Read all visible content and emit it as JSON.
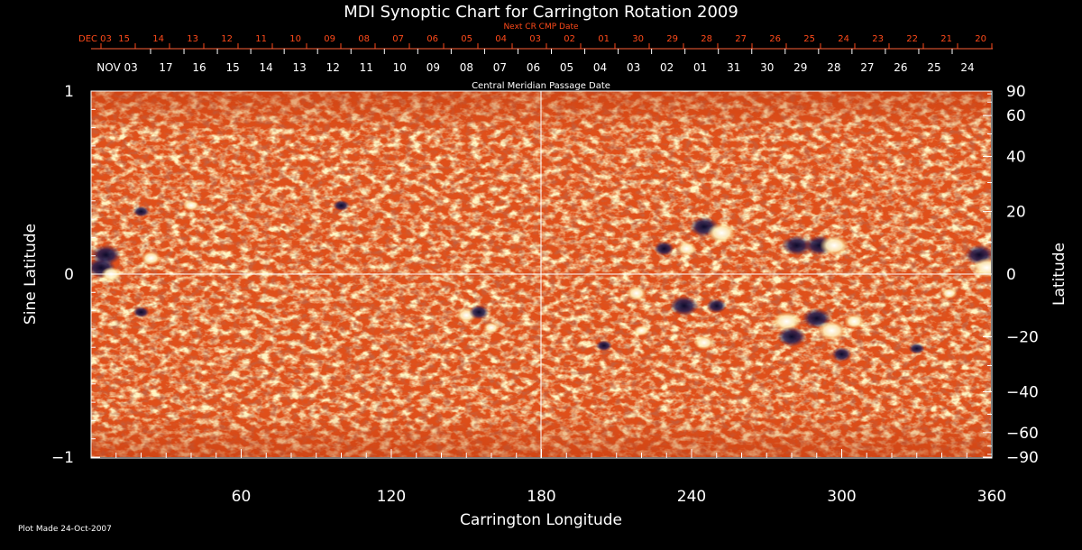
{
  "chart_data": {
    "type": "heatmap",
    "title": "MDI Synoptic Chart for Carrington Rotation 2009",
    "xlabel": "Carrington Longitude",
    "ylabel_left": "Sine Latitude",
    "ylabel_right": "Latitude",
    "xlim": [
      0,
      360
    ],
    "ylim": [
      -1,
      1
    ],
    "x_ticks": [
      60,
      120,
      180,
      240,
      300,
      360
    ],
    "y_ticks_left": [
      1,
      0,
      -1
    ],
    "y_ticks_left_labels": [
      "1",
      "0",
      "−1"
    ],
    "y_ticks_right": [
      90,
      60,
      40,
      20,
      0,
      -20,
      -40,
      -60,
      -90
    ],
    "y_ticks_right_labels": [
      "90",
      "60",
      "40",
      "20",
      "0",
      "−20",
      "−40",
      "−60",
      "−90"
    ],
    "grid": "center crosshair at 180 longitude and 0 latitude",
    "top_axis_red_label": "Next CR CMP Date",
    "top_axis_red_dates": [
      "DEC 03",
      "15",
      "14",
      "13",
      "12",
      "11",
      "10",
      "09",
      "08",
      "07",
      "06",
      "05",
      "04",
      "03",
      "02",
      "01",
      "30",
      "29",
      "28",
      "27",
      "26",
      "25",
      "24",
      "23",
      "22",
      "21",
      "20"
    ],
    "top_axis_white_label": "Central Meridian Passage Date",
    "top_axis_white_dates": [
      "NOV 03",
      "17",
      "16",
      "15",
      "14",
      "13",
      "12",
      "11",
      "10",
      "09",
      "08",
      "07",
      "06",
      "05",
      "04",
      "03",
      "02",
      "01",
      "31",
      "30",
      "29",
      "28",
      "27",
      "26",
      "25",
      "24"
    ],
    "footer_note": "Plot Made 24-Oct-2007",
    "colors": {
      "background": "#000000",
      "field_base": "#e8561c",
      "positive_polarity": "#ffffff",
      "negative_polarity": "#1a1845",
      "axes": "#ffffff",
      "top_dates_red": "#ff4a1a"
    },
    "regions": [
      {
        "lon": 4,
        "lat": 2,
        "polarity": "negative",
        "strength": "strong"
      },
      {
        "lon": 6,
        "lat": 6,
        "polarity": "negative",
        "strength": "strong"
      },
      {
        "lon": 8,
        "lat": 0,
        "polarity": "positive",
        "strength": "medium"
      },
      {
        "lon": 24,
        "lat": 5,
        "polarity": "positive",
        "strength": "medium"
      },
      {
        "lon": 20,
        "lat": 20,
        "polarity": "negative",
        "strength": "weak"
      },
      {
        "lon": 40,
        "lat": 22,
        "polarity": "positive",
        "strength": "weak"
      },
      {
        "lon": 20,
        "lat": -12,
        "polarity": "negative",
        "strength": "weak"
      },
      {
        "lon": 100,
        "lat": 22,
        "polarity": "negative",
        "strength": "weak"
      },
      {
        "lon": 150,
        "lat": -13,
        "polarity": "positive",
        "strength": "medium"
      },
      {
        "lon": 155,
        "lat": -12,
        "polarity": "negative",
        "strength": "medium"
      },
      {
        "lon": 160,
        "lat": -17,
        "polarity": "positive",
        "strength": "weak"
      },
      {
        "lon": 245,
        "lat": 15,
        "polarity": "negative",
        "strength": "strong"
      },
      {
        "lon": 252,
        "lat": 13,
        "polarity": "positive",
        "strength": "strong"
      },
      {
        "lon": 229,
        "lat": 8,
        "polarity": "negative",
        "strength": "medium"
      },
      {
        "lon": 238,
        "lat": 8,
        "polarity": "positive",
        "strength": "medium"
      },
      {
        "lon": 282,
        "lat": 9,
        "polarity": "negative",
        "strength": "strong"
      },
      {
        "lon": 291,
        "lat": 9,
        "polarity": "negative",
        "strength": "strong"
      },
      {
        "lon": 297,
        "lat": 9,
        "polarity": "positive",
        "strength": "strong"
      },
      {
        "lon": 355,
        "lat": 6,
        "polarity": "negative",
        "strength": "strong"
      },
      {
        "lon": 358,
        "lat": 2,
        "polarity": "positive",
        "strength": "strong"
      },
      {
        "lon": 218,
        "lat": -6,
        "polarity": "positive",
        "strength": "medium"
      },
      {
        "lon": 237,
        "lat": -10,
        "polarity": "negative",
        "strength": "strong"
      },
      {
        "lon": 250,
        "lat": -10,
        "polarity": "negative",
        "strength": "medium"
      },
      {
        "lon": 220,
        "lat": -18,
        "polarity": "positive",
        "strength": "weak"
      },
      {
        "lon": 245,
        "lat": -22,
        "polarity": "positive",
        "strength": "medium"
      },
      {
        "lon": 278,
        "lat": -15,
        "polarity": "positive",
        "strength": "strong"
      },
      {
        "lon": 280,
        "lat": -20,
        "polarity": "negative",
        "strength": "strong"
      },
      {
        "lon": 290,
        "lat": -14,
        "polarity": "negative",
        "strength": "strong"
      },
      {
        "lon": 296,
        "lat": -18,
        "polarity": "positive",
        "strength": "strong"
      },
      {
        "lon": 305,
        "lat": -15,
        "polarity": "positive",
        "strength": "medium"
      },
      {
        "lon": 300,
        "lat": -26,
        "polarity": "negative",
        "strength": "medium"
      },
      {
        "lon": 330,
        "lat": -24,
        "polarity": "negative",
        "strength": "weak"
      },
      {
        "lon": 343,
        "lat": -6,
        "polarity": "positive",
        "strength": "weak"
      },
      {
        "lon": 205,
        "lat": -23,
        "polarity": "negative",
        "strength": "weak"
      }
    ]
  }
}
